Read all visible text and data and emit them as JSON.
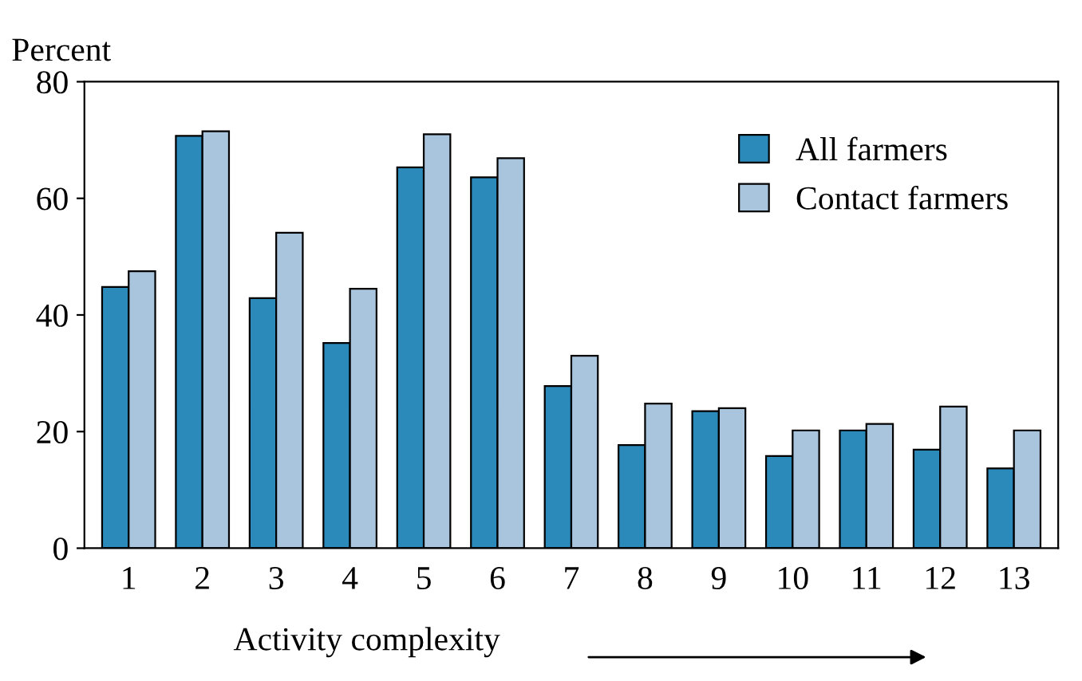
{
  "chart_data": {
    "type": "bar",
    "ylabel": "Percent",
    "xlabel": "Activity complexity",
    "categories": [
      "1",
      "2",
      "3",
      "4",
      "5",
      "6",
      "7",
      "8",
      "9",
      "10",
      "11",
      "12",
      "13"
    ],
    "series": [
      {
        "name": "All farmers",
        "color": "#2b8ab9",
        "values": [
          44.8,
          70.7,
          42.9,
          35.2,
          65.3,
          63.6,
          27.8,
          17.7,
          23.5,
          15.8,
          20.2,
          16.9,
          13.7
        ]
      },
      {
        "name": "Contact farmers",
        "color": "#a9c5de",
        "values": [
          47.5,
          71.5,
          54.1,
          44.5,
          71.0,
          66.9,
          33.0,
          24.8,
          24.0,
          20.2,
          21.3,
          24.3,
          20.2
        ]
      }
    ],
    "ylim": [
      0,
      80
    ],
    "yticks": [
      0,
      20,
      40,
      60,
      80
    ],
    "grid": false,
    "legend": "top right"
  }
}
